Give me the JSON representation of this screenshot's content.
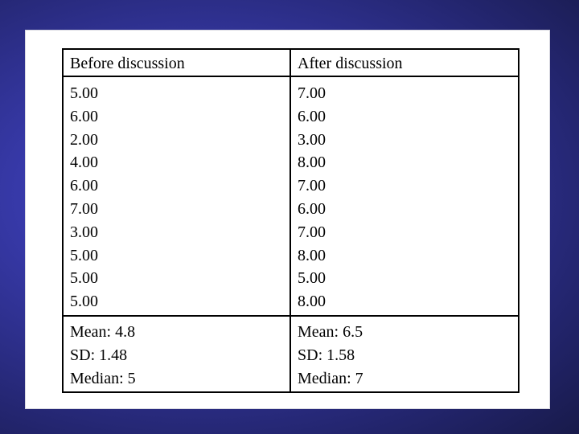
{
  "table": {
    "columns": [
      {
        "header": "Before discussion",
        "values": [
          "5.00",
          "6.00",
          "2.00",
          "4.00",
          "6.00",
          "7.00",
          "3.00",
          "5.00",
          "5.00",
          "5.00"
        ],
        "stats": {
          "mean": "Mean: 4.8",
          "sd": "SD: 1.48",
          "median": "Median: 5"
        }
      },
      {
        "header": "After discussion",
        "values": [
          "7.00",
          "6.00",
          "3.00",
          "8.00",
          "7.00",
          "6.00",
          "7.00",
          "8.00",
          "5.00",
          "8.00"
        ],
        "stats": {
          "mean": "Mean: 6.5",
          "sd": "SD: 1.58",
          "median": "Median: 7"
        }
      }
    ]
  },
  "colors": {
    "background": "#3739a8",
    "panel": "#ffffff",
    "text": "#000000",
    "border": "#000000"
  }
}
